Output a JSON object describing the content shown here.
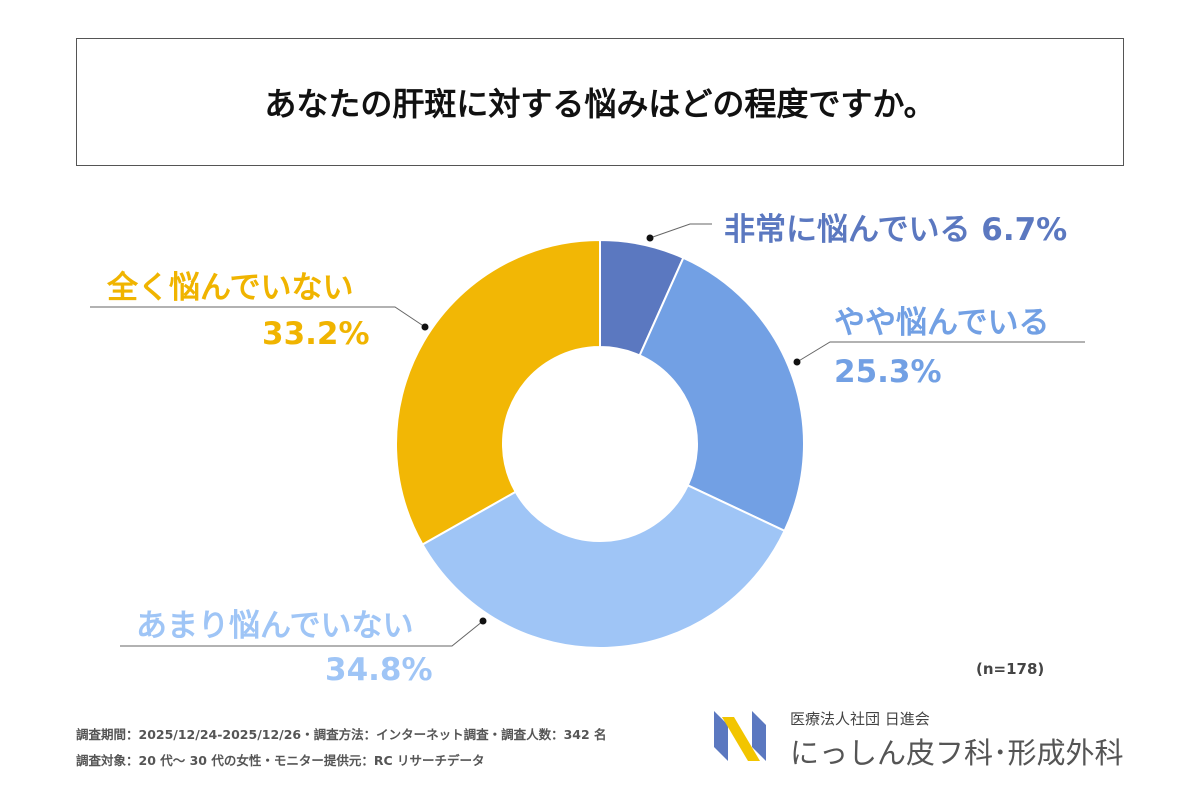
{
  "title": "あなたの肝斑に対する悩みはどの程度ですか。",
  "chart_data": {
    "type": "pie",
    "donut": true,
    "title": "あなたの肝斑に対する悩みはどの程度ですか。",
    "slices": [
      {
        "label": "非常に悩んでいる",
        "value": 6.7,
        "display": "6.7%",
        "color": "#5b78c0"
      },
      {
        "label": "やや悩んでいる",
        "value": 25.3,
        "display": "25.3%",
        "color": "#72a0e4"
      },
      {
        "label": "あまり悩んでいない",
        "value": 34.8,
        "display": "34.8%",
        "color": "#9fc5f6"
      },
      {
        "label": "全く悩んでいない",
        "value": 33.2,
        "display": "33.2%",
        "color": "#f2b705"
      }
    ],
    "note": "(n=178)"
  },
  "footer": {
    "line1": "調査期間：2025/12/24-2025/12/26・調査方法：インターネット調査・調査人数：342 名",
    "line2": "調査対象：20 代～ 30 代の女性・モニター提供元：RC リサーチデータ"
  },
  "logo": {
    "org": "医療法人社団 日進会",
    "clinic": "にっしん皮フ科･形成外科"
  }
}
